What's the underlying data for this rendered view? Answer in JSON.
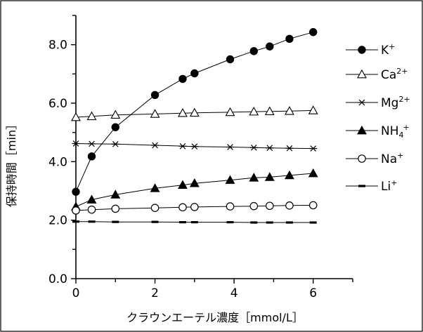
{
  "chart_data": {
    "type": "scatter",
    "xlabel": "クラウンエーテル濃度［mmol/L］",
    "ylabel": "保持時間［min］",
    "xlim": [
      0,
      7
    ],
    "ylim": [
      0,
      9
    ],
    "xticks": [
      "0",
      "2",
      "4",
      "6"
    ],
    "yticks": [
      "0.0",
      "2.0",
      "4.0",
      "6.0",
      "8.0"
    ],
    "grid": false,
    "legend_position": "right",
    "series": [
      {
        "name": "K+",
        "base": "K",
        "sup": "+",
        "sub": "",
        "marker": "filled-circle",
        "x": [
          0,
          0.4,
          1,
          2,
          2.7,
          3,
          3.9,
          4.5,
          4.9,
          5.4,
          6
        ],
        "y": [
          2.97,
          4.18,
          5.18,
          6.28,
          6.83,
          7.02,
          7.5,
          7.78,
          7.94,
          8.2,
          8.43
        ]
      },
      {
        "name": "Ca2+",
        "base": "Ca",
        "sup": "2+",
        "sub": "",
        "marker": "open-triangle",
        "x": [
          0,
          0.4,
          1,
          2,
          2.7,
          3,
          3.9,
          4.5,
          4.9,
          5.4,
          6
        ],
        "y": [
          5.52,
          5.55,
          5.6,
          5.63,
          5.66,
          5.67,
          5.69,
          5.71,
          5.72,
          5.73,
          5.75
        ]
      },
      {
        "name": "Mg2+",
        "base": "Mg",
        "sup": "2+",
        "sub": "",
        "marker": "asterisk",
        "x": [
          0,
          0.4,
          1,
          2,
          2.7,
          3,
          3.9,
          4.5,
          4.9,
          5.4,
          6
        ],
        "y": [
          4.62,
          4.61,
          4.6,
          4.56,
          4.53,
          4.52,
          4.5,
          4.48,
          4.47,
          4.46,
          4.45
        ]
      },
      {
        "name": "NH4+",
        "base": "NH",
        "sup": "+",
        "sub": "4",
        "marker": "filled-triangle",
        "x": [
          0,
          0.4,
          1,
          2,
          2.7,
          3,
          3.9,
          4.5,
          4.9,
          5.4,
          6
        ],
        "y": [
          2.46,
          2.7,
          2.87,
          3.09,
          3.2,
          3.26,
          3.37,
          3.45,
          3.47,
          3.53,
          3.6
        ]
      },
      {
        "name": "Na+",
        "base": "Na",
        "sup": "+",
        "sub": "",
        "marker": "open-circle",
        "x": [
          0,
          0.4,
          1,
          2,
          2.7,
          3,
          3.9,
          4.5,
          4.9,
          5.4,
          6
        ],
        "y": [
          2.33,
          2.36,
          2.39,
          2.42,
          2.44,
          2.45,
          2.47,
          2.48,
          2.49,
          2.5,
          2.51
        ]
      },
      {
        "name": "Li+",
        "base": "Li",
        "sup": "+",
        "sub": "",
        "marker": "dash",
        "x": [
          0,
          0.4,
          1,
          2,
          2.7,
          3,
          3.9,
          4.5,
          4.9,
          5.4,
          6
        ],
        "y": [
          1.95,
          1.95,
          1.94,
          1.94,
          1.93,
          1.93,
          1.93,
          1.92,
          1.92,
          1.92,
          1.92
        ]
      }
    ]
  }
}
